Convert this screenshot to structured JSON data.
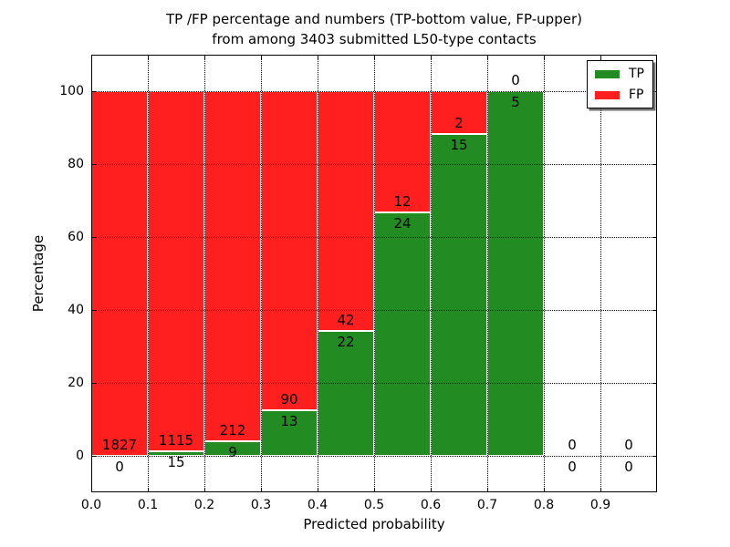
{
  "title": {
    "line1": "TP /FP percentage and numbers (TP-bottom value, FP-upper)",
    "line2": "from among 3403 submitted L50-type contacts"
  },
  "axes": {
    "xlabel": "Predicted probability",
    "ylabel": "Percentage",
    "x_tick_labels": [
      "0.0",
      "0.1",
      "0.2",
      "0.3",
      "0.4",
      "0.5",
      "0.6",
      "0.7",
      "0.8",
      "0.9"
    ],
    "y_tick_labels": [
      "0",
      "20",
      "40",
      "60",
      "80",
      "100"
    ],
    "y_tick_values": [
      0,
      20,
      40,
      60,
      80,
      100
    ]
  },
  "legend": {
    "position": "upper right",
    "entries": [
      {
        "label": "TP",
        "color": "#228b22"
      },
      {
        "label": "FP",
        "color": "#ff1f1f"
      }
    ]
  },
  "colors": {
    "tp": "#228b22",
    "fp": "#ff1f1f",
    "grid": "#000000",
    "bar_edge": "#ffffff",
    "background": "#ffffff",
    "text": "#000000"
  },
  "chart_data": {
    "type": "bar",
    "stacked": true,
    "title": "TP /FP percentage and numbers (TP-bottom value, FP-upper)\nfrom among 3403 submitted L50-type contacts",
    "xlabel": "Predicted probability",
    "ylabel": "Percentage",
    "xlim": [
      0.0,
      1.0
    ],
    "ylim": [
      -10,
      110
    ],
    "grid": true,
    "grid_style": "dotted",
    "legend_position": "upper right",
    "total_contacts": 3403,
    "bin_width": 0.1,
    "bin_starts": [
      0.0,
      0.1,
      0.2,
      0.3,
      0.4,
      0.5,
      0.6,
      0.7,
      0.8,
      0.9
    ],
    "series": [
      {
        "name": "TP",
        "color": "#228b22",
        "counts": [
          0,
          15,
          9,
          13,
          22,
          24,
          15,
          5,
          0,
          0
        ]
      },
      {
        "name": "FP",
        "color": "#ff1f1f",
        "counts": [
          1827,
          1115,
          212,
          90,
          42,
          12,
          2,
          0,
          0,
          0
        ]
      }
    ],
    "bars_show_percent_of_bin_total": true
  }
}
